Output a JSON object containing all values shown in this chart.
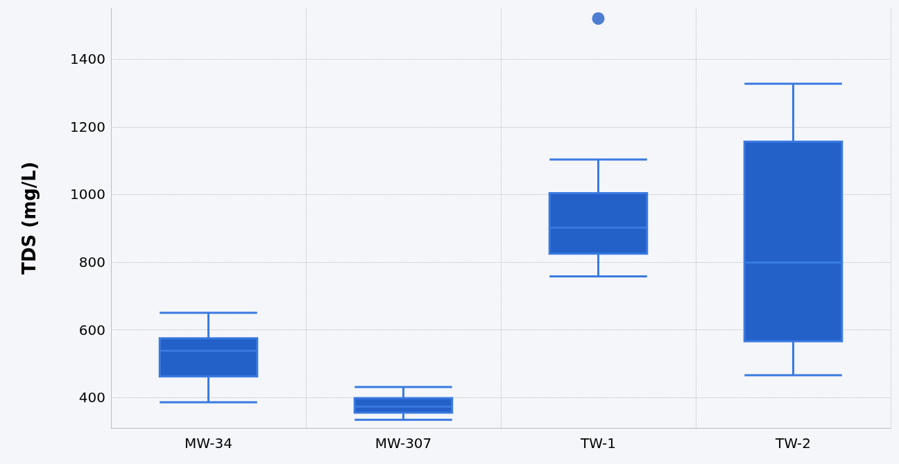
{
  "chart_data": {
    "type": "box",
    "ylabel": "TDS (mg/L)",
    "categories": [
      "MW-34",
      "MW-307",
      "TW-1",
      "TW-2"
    ],
    "color": "#2360c8",
    "boxes": [
      {
        "low": 386,
        "q1": 462,
        "median": 538,
        "q3": 575,
        "high": 650
      },
      {
        "low": 334,
        "q1": 355,
        "median": 373,
        "q3": 398,
        "high": 431
      },
      {
        "low": 758,
        "q1": 825,
        "median": 902,
        "q3": 1004,
        "high": 1103,
        "outliers": [
          1520
        ]
      },
      {
        "low": 466,
        "q1": 566,
        "median": 799,
        "q3": 1156,
        "high": 1327
      }
    ],
    "ylim": [
      310,
      1550
    ],
    "yticks": [
      400,
      600,
      800,
      1000,
      1200,
      1400
    ],
    "grid": true
  }
}
